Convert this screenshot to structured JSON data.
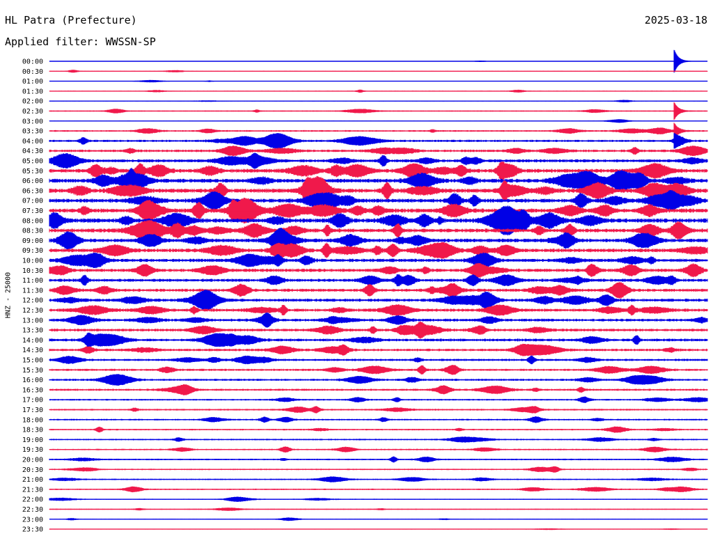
{
  "header": {
    "station": "HL Patra (Prefecture)",
    "date": "2025-03-18",
    "filter": "Applied filter: WWSSN-SP"
  },
  "colors": {
    "even_trace": "#0000e6",
    "odd_trace": "#f0194b",
    "background": "#ffffff"
  },
  "chart_data": {
    "type": "line",
    "title": "HL Patra (Prefecture)",
    "ylabel": "HNZ - 25000",
    "xlabel": "",
    "grid": false,
    "legend": "none",
    "trace_length_minutes": 30,
    "row_labels": [
      "00:00",
      "00:30",
      "01:00",
      "01:30",
      "02:00",
      "02:30",
      "03:00",
      "03:30",
      "04:00",
      "04:30",
      "05:00",
      "05:30",
      "06:00",
      "06:30",
      "07:00",
      "07:30",
      "08:00",
      "08:30",
      "09:00",
      "09:30",
      "10:00",
      "10:30",
      "11:00",
      "11:30",
      "12:00",
      "12:30",
      "13:00",
      "13:30",
      "14:00",
      "14:30",
      "15:00",
      "15:30",
      "16:00",
      "16:30",
      "17:00",
      "17:30",
      "18:00",
      "18:30",
      "19:00",
      "19:30",
      "20:00",
      "20:30",
      "21:00",
      "21:30",
      "22:00",
      "22:30",
      "23:00",
      "23:30"
    ],
    "noise_level": [
      0.3,
      0.5,
      0.4,
      0.6,
      0.5,
      0.8,
      0.4,
      1.2,
      1.6,
      1.8,
      2.2,
      2.8,
      2.8,
      3.0,
      2.8,
      3.0,
      3.0,
      2.8,
      2.6,
      2.6,
      2.4,
      2.4,
      2.2,
      2.2,
      2.2,
      2.2,
      2.0,
      2.0,
      2.0,
      1.8,
      1.6,
      1.6,
      1.5,
      1.5,
      1.2,
      1.2,
      1.2,
      1.1,
      1.1,
      1.1,
      1.1,
      1.0,
      1.0,
      1.0,
      0.8,
      0.7,
      0.6,
      0.5
    ],
    "events": [
      {
        "row": 0,
        "minute": 28.5,
        "amplitude": 16
      },
      {
        "row": 5,
        "minute": 28.5,
        "amplitude": 12
      },
      {
        "row": 7,
        "minute": 28.5,
        "amplitude": 10
      },
      {
        "row": 8,
        "minute": 28.5,
        "amplitude": 8
      }
    ]
  }
}
